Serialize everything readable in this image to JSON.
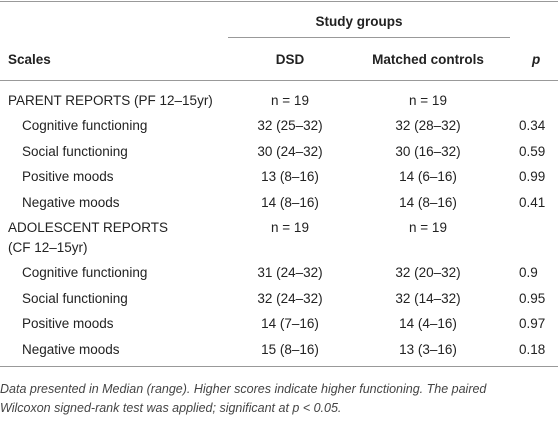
{
  "table": {
    "group_header": "Study groups",
    "columns": [
      "Scales",
      "DSD",
      "Matched controls",
      "p"
    ],
    "sections": [
      {
        "label_lines": [
          "PARENT REPORTS (PF 12–15yr)"
        ],
        "n": [
          "n = 19",
          "n = 19"
        ],
        "rows": [
          [
            "Cognitive functioning",
            "32 (25–32)",
            "32 (28–32)",
            "0.34"
          ],
          [
            "Social functioning",
            "30 (24–32)",
            "30 (16–32)",
            "0.59"
          ],
          [
            "Positive moods",
            "13 (8–16)",
            "14 (6–16)",
            "0.99"
          ],
          [
            "Negative moods",
            "14 (8–16)",
            "14 (8–16)",
            "0.41"
          ]
        ]
      },
      {
        "label_lines": [
          "ADOLESCENT REPORTS",
          "(CF 12–15yr)"
        ],
        "n": [
          "n = 19",
          "n = 19"
        ],
        "rows": [
          [
            "Cognitive functioning",
            "31 (24–32)",
            "32 (20–32)",
            "0.9"
          ],
          [
            "Social functioning",
            "32 (24–32)",
            "32 (14–32)",
            "0.95"
          ],
          [
            "Positive moods",
            "14 (7–16)",
            "14 (4–16)",
            "0.97"
          ],
          [
            "Negative moods",
            "15 (8–16)",
            "13 (3–16)",
            "0.18"
          ]
        ]
      }
    ],
    "footnote_lines": [
      "Data presented in Median (range). Higher scores indicate higher functioning. The paired",
      "Wilcoxon signed-rank test was applied; significant at p < 0.05."
    ]
  }
}
